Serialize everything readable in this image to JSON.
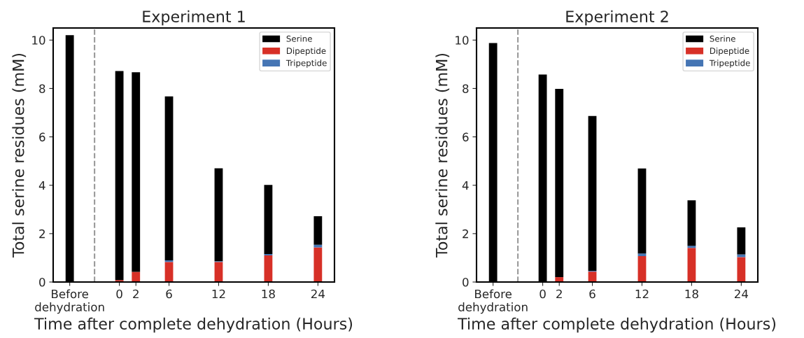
{
  "chart_data": [
    {
      "type": "bar",
      "stacked": true,
      "title": "Experiment 1",
      "xlabel": "Time after complete dehydration (Hours)",
      "ylabel": "Total serine residues (mM)",
      "x": [
        -6,
        0,
        2,
        6,
        12,
        18,
        24
      ],
      "series": [
        {
          "name": "Dipeptide",
          "color": "#d73027",
          "values": [
            0,
            0.08,
            0.42,
            0.83,
            0.83,
            1.1,
            1.43
          ]
        },
        {
          "name": "Tripeptide",
          "color": "#4575b4",
          "values": [
            0,
            0,
            0,
            0.07,
            0.03,
            0.06,
            0.11
          ]
        },
        {
          "name": "Serine",
          "color": "#000000",
          "values": [
            10.2,
            8.64,
            8.25,
            6.77,
            3.84,
            2.85,
            1.18
          ]
        }
      ],
      "xlim": [
        -8,
        26
      ],
      "xticks": [
        {
          "value": -6,
          "label": "Before\ndehydration"
        },
        0,
        2,
        6,
        12,
        18,
        24
      ],
      "ylim": [
        0,
        10.5
      ],
      "yticks": [
        0,
        2,
        4,
        6,
        8,
        10
      ],
      "ref_lines": [
        {
          "axis": "x",
          "value": -3,
          "color": "#999999",
          "line_style": "dashed"
        }
      ],
      "legend": "top right",
      "grid": false
    },
    {
      "type": "bar",
      "stacked": true,
      "title": "Experiment 2",
      "xlabel": "Time after complete dehydration (Hours)",
      "ylabel": "Total serine residues (mM)",
      "x": [
        -6,
        0,
        2,
        6,
        12,
        18,
        24
      ],
      "series": [
        {
          "name": "Dipeptide",
          "color": "#d73027",
          "values": [
            0,
            0,
            0.2,
            0.43,
            1.07,
            1.41,
            1.03
          ]
        },
        {
          "name": "Tripeptide",
          "color": "#4575b4",
          "values": [
            0,
            0,
            0,
            0.03,
            0.11,
            0.09,
            0.11
          ]
        },
        {
          "name": "Serine",
          "color": "#000000",
          "values": [
            9.88,
            8.58,
            7.78,
            6.4,
            3.51,
            1.88,
            1.12
          ]
        }
      ],
      "xlim": [
        -8,
        26
      ],
      "xticks": [
        {
          "value": -6,
          "label": "Before\ndehydration"
        },
        0,
        2,
        6,
        12,
        18,
        24
      ],
      "ylim": [
        0,
        10.5
      ],
      "yticks": [
        0,
        2,
        4,
        6,
        8,
        10
      ],
      "ref_lines": [
        {
          "axis": "x",
          "value": -3,
          "color": "#999999",
          "line_style": "dashed"
        }
      ],
      "legend": "top right",
      "grid": false
    }
  ]
}
